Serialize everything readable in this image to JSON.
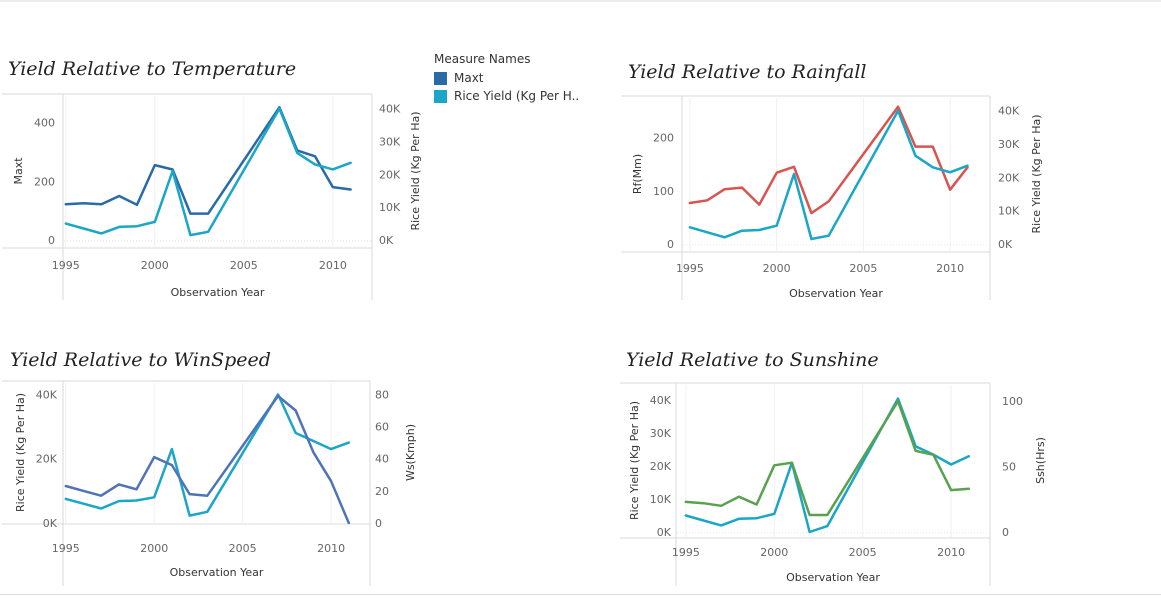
{
  "legend": {
    "title": "Measure Names",
    "items": [
      {
        "label": "Maxt",
        "color": "#2a6aa6"
      },
      {
        "label": "Rice Yield (Kg Per H..",
        "color": "#1aa6c7"
      }
    ]
  },
  "chart_data": [
    {
      "id": "temperature",
      "type": "line",
      "title": "Yield Relative to Temperature",
      "xlabel": "Observation Year",
      "ylabel_left": "Maxt",
      "ylabel_right": "Rice Yield (Kg Per Ha)",
      "xticks": [
        "1995",
        "2000",
        "2005",
        "2010"
      ],
      "left_ticks": [
        "400",
        "200",
        "0"
      ],
      "right_ticks": [
        "40K",
        "30K",
        "20K",
        "10K",
        "0K"
      ],
      "xlim": [
        1994.9,
        2012.2
      ],
      "left_ylim": [
        0,
        470
      ],
      "right_ylim": [
        0,
        42000
      ],
      "series": [
        {
          "name": "Maxt",
          "axis": "left",
          "color": "#2a6aa6",
          "x": [
            1995,
            1996,
            1997,
            1998,
            1999,
            2000,
            2001,
            2002,
            2003,
            2007,
            2008,
            2009,
            2010,
            2011
          ],
          "values": [
            122,
            125,
            122,
            150,
            120,
            255,
            240,
            90,
            90,
            452,
            305,
            285,
            180,
            172
          ]
        },
        {
          "name": "Rice Yield (Kg Per Ha)",
          "axis": "right",
          "color": "#1aa6c7",
          "x": [
            1995,
            1996,
            1997,
            1998,
            1999,
            2000,
            2001,
            2002,
            2003,
            2007,
            2008,
            2009,
            2010,
            2011
          ],
          "values": [
            5000,
            3500,
            2000,
            4000,
            4200,
            5500,
            21000,
            1500,
            2500,
            40000,
            26500,
            23000,
            21500,
            23500
          ]
        }
      ]
    },
    {
      "id": "rainfall",
      "type": "line",
      "title": "Yield Relative to Rainfall",
      "xlabel": "Observation Year",
      "ylabel_left": "Rf(Mm)",
      "ylabel_right": "Rice Yield (Kg Per Ha)",
      "xticks": [
        "1995",
        "2000",
        "2005",
        "2010"
      ],
      "left_ticks": [
        "200",
        "100",
        "0"
      ],
      "right_ticks": [
        "40K",
        "30K",
        "20K",
        "10K",
        "0K"
      ],
      "xlim": [
        1994.6,
        2012.3
      ],
      "left_ylim": [
        0,
        263
      ],
      "right_ylim": [
        0,
        42000
      ],
      "series": [
        {
          "name": "Rf(Mm)",
          "axis": "left",
          "color": "#d9534f",
          "x": [
            1995,
            1996,
            1997,
            1998,
            1999,
            2000,
            2001,
            2002,
            2003,
            2007,
            2008,
            2009,
            2010,
            2011
          ],
          "values": [
            77,
            82,
            103,
            106,
            74,
            134,
            145,
            58,
            80,
            258,
            183,
            183,
            102,
            144
          ]
        },
        {
          "name": "Rice Yield (Kg Per Ha)",
          "axis": "right",
          "color": "#1aa6c7",
          "x": [
            1995,
            1996,
            1997,
            1998,
            1999,
            2000,
            2001,
            2002,
            2003,
            2007,
            2008,
            2009,
            2010,
            2011
          ],
          "values": [
            5000,
            3500,
            2000,
            4000,
            4200,
            5500,
            21000,
            1500,
            2500,
            40000,
            26500,
            23000,
            21500,
            23500
          ]
        }
      ]
    },
    {
      "id": "winspeed",
      "type": "line",
      "title": "Yield Relative to WinSpeed",
      "xlabel": "Observation Year",
      "ylabel_left": "Rice Yield (Kg Per Ha)",
      "ylabel_right": "Ws(Kmph)",
      "xticks": [
        "1995",
        "2000",
        "2005",
        "2010"
      ],
      "left_ticks": [
        "40K",
        "20K",
        "0K"
      ],
      "right_ticks": [
        "80",
        "60",
        "40",
        "20",
        "0"
      ],
      "xlim": [
        1994.9,
        2012.2
      ],
      "left_ylim": [
        0,
        42000
      ],
      "right_ylim": [
        0,
        84
      ],
      "series": [
        {
          "name": "Rice Yield (Kg Per Ha)",
          "axis": "left",
          "color": "#1aa6c7",
          "x": [
            1995,
            1996,
            1997,
            1998,
            1999,
            2000,
            2001,
            2002,
            2003,
            2007,
            2008,
            2009,
            2010,
            2011
          ],
          "values": [
            7500,
            6000,
            4500,
            6800,
            7000,
            8000,
            23000,
            2300,
            3500,
            40000,
            28000,
            25500,
            23000,
            25000
          ]
        },
        {
          "name": "Ws(Kmph)",
          "axis": "right",
          "color": "#4f73b8",
          "x": [
            1995,
            1996,
            1997,
            1998,
            1999,
            2000,
            2001,
            2002,
            2003,
            2007,
            2008,
            2009,
            2010,
            2011
          ],
          "values": [
            23,
            20,
            17,
            24,
            21,
            41,
            36,
            18,
            17,
            79,
            70,
            44,
            26,
            0
          ]
        }
      ]
    },
    {
      "id": "sunshine",
      "type": "line",
      "title": "Yield Relative to Sunshine",
      "xlabel": "Observation Year",
      "ylabel_left": "Rice Yield (Kg Per Ha)",
      "ylabel_right": "Ssh(Hrs)",
      "xticks": [
        "1995",
        "2000",
        "2005",
        "2010"
      ],
      "left_ticks": [
        "40K",
        "30K",
        "20K",
        "10K",
        "0K"
      ],
      "right_ticks": [
        "100",
        "50",
        "0"
      ],
      "xlim": [
        1994.5,
        2012.2
      ],
      "left_ylim": [
        0,
        42500
      ],
      "right_ylim": [
        0,
        107
      ],
      "series": [
        {
          "name": "Rice Yield (Kg Per Ha)",
          "axis": "left",
          "color": "#1aa6c7",
          "x": [
            1995,
            1996,
            1997,
            1998,
            1999,
            2000,
            2001,
            2002,
            2003,
            2007,
            2008,
            2009,
            2010,
            2011
          ],
          "values": [
            5000,
            3500,
            2000,
            4000,
            4200,
            5500,
            21000,
            0,
            1800,
            40500,
            26000,
            23500,
            20500,
            23000
          ]
        },
        {
          "name": "Ssh(Hrs)",
          "axis": "right",
          "color": "#59a14f",
          "x": [
            1995,
            1996,
            1997,
            1998,
            1999,
            2000,
            2001,
            2002,
            2003,
            2007,
            2008,
            2009,
            2010,
            2011
          ],
          "values": [
            23,
            22,
            20,
            27,
            21,
            51,
            53,
            13,
            13,
            100,
            62,
            59,
            32,
            33
          ]
        }
      ]
    }
  ]
}
